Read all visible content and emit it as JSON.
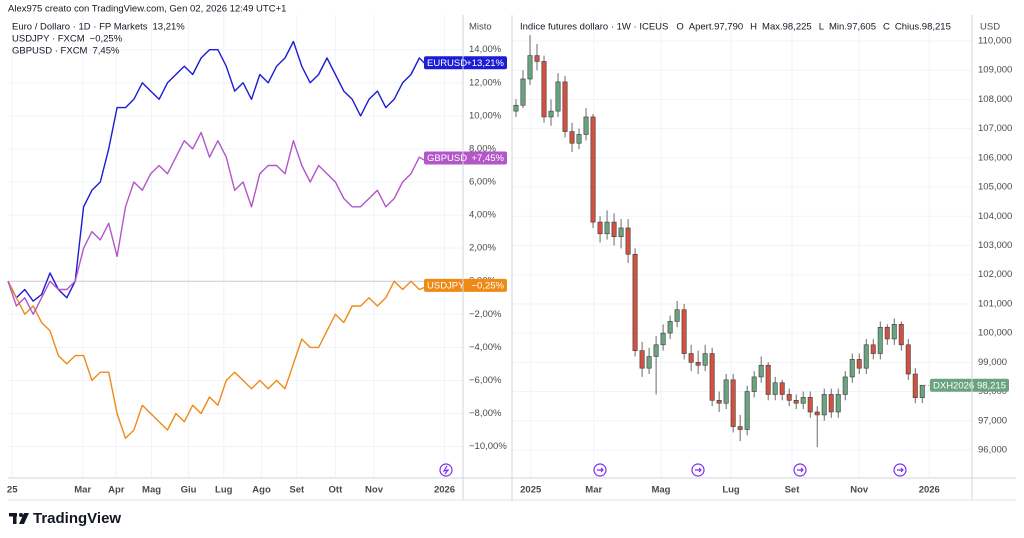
{
  "header": "Alex975 creato con TradingView.com, Gen 02, 2026 12:49 UTC+1",
  "footer": "TradingView",
  "chart_data": [
    {
      "type": "line",
      "axis_label": "Misto",
      "grid": true,
      "xlim": [
        0,
        54.2
      ],
      "ylim": [
        -11.9,
        16.1
      ],
      "xticks": [
        {
          "value": 0.5,
          "label": "25"
        },
        {
          "value": 8.9,
          "label": "Mar"
        },
        {
          "value": 12.9,
          "label": "Apr"
        },
        {
          "value": 17.1,
          "label": "Mag"
        },
        {
          "value": 21.5,
          "label": "Giu"
        },
        {
          "value": 25.7,
          "label": "Lug"
        },
        {
          "value": 30.2,
          "label": "Ago"
        },
        {
          "value": 34.4,
          "label": "Set"
        },
        {
          "value": 39,
          "label": "Ott"
        },
        {
          "value": 43.6,
          "label": "Nov"
        },
        {
          "value": 52,
          "label": "2026"
        }
      ],
      "yticks": [
        {
          "value": 14,
          "label": "14,00%"
        },
        {
          "value": 12,
          "label": "12,00%"
        },
        {
          "value": 10,
          "label": "10,00%"
        },
        {
          "value": 8,
          "label": "8,00%"
        },
        {
          "value": 6,
          "label": "6,00%"
        },
        {
          "value": 4,
          "label": "4,00%"
        },
        {
          "value": 2,
          "label": "2,00%"
        },
        {
          "value": 0,
          "label": "0,00%"
        },
        {
          "value": -2,
          "label": "−2,00%"
        },
        {
          "value": -4,
          "label": "−4,00%"
        },
        {
          "value": -6,
          "label": "−6,00%"
        },
        {
          "value": -8,
          "label": "−8,00%"
        },
        {
          "value": -10,
          "label": "−10,00%"
        }
      ],
      "series": [
        {
          "name": "Euro / Dollaro · 1D · FP Markets",
          "legend_label": "13,21%",
          "tag": "EURUSD",
          "tag_label": "+13,21%",
          "color": "#1c1cd4",
          "values": [
            0,
            -1,
            -0.5,
            -1.2,
            -0.8,
            0.5,
            -0.5,
            -1,
            0,
            4.5,
            5.5,
            6,
            8,
            10.5,
            10.5,
            11,
            12,
            11.5,
            11,
            12,
            12.5,
            13,
            12.5,
            13.5,
            14,
            14,
            13,
            11.5,
            12,
            11,
            12.5,
            12,
            13,
            13.5,
            14.5,
            13,
            12,
            12.5,
            13.5,
            12.5,
            11.5,
            11,
            10,
            11,
            11.5,
            10.5,
            11,
            12,
            12.5,
            13.5,
            13,
            13.21
          ]
        },
        {
          "name": "USDJPY · FXCM",
          "legend_label": "−0,25%",
          "tag": "USDJPY",
          "tag_label": "−0,25%",
          "color": "#ef8a17",
          "values": [
            0,
            -1,
            -2,
            -1.5,
            -2.5,
            -3,
            -4.5,
            -5,
            -4.5,
            -4.5,
            -6,
            -5.5,
            -5.5,
            -8,
            -9.5,
            -9,
            -7.5,
            -8,
            -8.5,
            -9,
            -8,
            -8.5,
            -7.5,
            -8,
            -7,
            -7.5,
            -6,
            -5.5,
            -6,
            -6.5,
            -6,
            -6.5,
            -6,
            -6.5,
            -5,
            -3.5,
            -4,
            -4,
            -3,
            -2,
            -2.5,
            -1.5,
            -1.5,
            -1,
            -1.5,
            -1,
            0,
            -0.5,
            0,
            -0.5,
            -0.3,
            -0.25
          ]
        },
        {
          "name": "GBPUSD · FXCM",
          "legend_label": "7,45%",
          "tag": "GBPUSD",
          "tag_label": "+7,45%",
          "color": "#b256c8",
          "values": [
            0,
            -1.5,
            -1,
            -2,
            -1,
            0,
            -0.5,
            -0.5,
            0,
            2,
            3,
            2.5,
            3.5,
            1.5,
            4.5,
            6,
            5.5,
            6.5,
            7,
            6.5,
            7.5,
            8.5,
            8,
            9,
            7.5,
            8.5,
            7.5,
            5.5,
            6,
            4.5,
            6.5,
            7,
            7,
            6.5,
            8.5,
            7,
            6,
            7,
            6.5,
            6,
            5,
            4.5,
            4.5,
            5,
            5.5,
            4.5,
            5,
            6,
            6.5,
            7.5,
            7.2,
            7.45
          ]
        }
      ]
    },
    {
      "type": "candlestick",
      "title": "Indice futures dollaro · 1W · ICEUS",
      "ohlc_legend": [
        {
          "key": "O",
          "label": "Apert.97,790"
        },
        {
          "key": "H",
          "label": "Max.98,225"
        },
        {
          "key": "L",
          "label": "Min.97,605"
        },
        {
          "key": "C",
          "label": "Chius.98,215"
        }
      ],
      "axis_label": "USD",
      "grid": true,
      "up_color": "#6aa37f",
      "down_color": "#d2513f",
      "tag": "DXH2026",
      "tag_label": "98,215",
      "xlim": [
        -0.57,
        65.1
      ],
      "ylim": [
        95.04,
        110.89
      ],
      "xticks": [
        {
          "value": 2.1,
          "label": "2025"
        },
        {
          "value": 11.1,
          "label": "Mar"
        },
        {
          "value": 20.7,
          "label": "Mag"
        },
        {
          "value": 30.7,
          "label": "Lug"
        },
        {
          "value": 39.4,
          "label": "Set"
        },
        {
          "value": 49,
          "label": "Nov"
        },
        {
          "value": 59,
          "label": "2026"
        }
      ],
      "yticks": [
        {
          "value": 110,
          "label": "110,000"
        },
        {
          "value": 109,
          "label": "109,000"
        },
        {
          "value": 108,
          "label": "108,000"
        },
        {
          "value": 107,
          "label": "107,000"
        },
        {
          "value": 106,
          "label": "106,000"
        },
        {
          "value": 105,
          "label": "105,000"
        },
        {
          "value": 104,
          "label": "104,000"
        },
        {
          "value": 103,
          "label": "103,000"
        },
        {
          "value": 102,
          "label": "102,000"
        },
        {
          "value": 101,
          "label": "101,000"
        },
        {
          "value": 100,
          "label": "100,000"
        },
        {
          "value": 99,
          "label": "99,000"
        },
        {
          "value": 98,
          "label": "98,000"
        },
        {
          "value": 97,
          "label": "97,000"
        },
        {
          "value": 96,
          "label": "96,000"
        }
      ],
      "ohlc": [
        [
          107.6,
          108.0,
          107.4,
          107.8
        ],
        [
          107.8,
          109.0,
          107.7,
          108.7
        ],
        [
          108.7,
          110.2,
          108.5,
          109.5
        ],
        [
          109.5,
          109.9,
          109.0,
          109.3
        ],
        [
          109.3,
          109.5,
          107.2,
          107.4
        ],
        [
          107.4,
          108.0,
          107.1,
          107.6
        ],
        [
          107.6,
          108.9,
          107.4,
          108.6
        ],
        [
          108.6,
          108.8,
          106.7,
          106.9
        ],
        [
          106.9,
          107.2,
          106.2,
          106.5
        ],
        [
          106.5,
          107.0,
          106.3,
          106.8
        ],
        [
          106.8,
          107.7,
          106.6,
          107.4
        ],
        [
          107.4,
          107.5,
          103.6,
          103.8
        ],
        [
          103.8,
          104.0,
          103.1,
          103.4
        ],
        [
          103.4,
          104.2,
          103.2,
          103.8
        ],
        [
          103.8,
          104.1,
          103.0,
          103.3
        ],
        [
          103.3,
          103.9,
          102.9,
          103.6
        ],
        [
          103.6,
          103.9,
          102.4,
          102.7
        ],
        [
          102.7,
          102.9,
          99.2,
          99.4
        ],
        [
          99.4,
          99.7,
          98.5,
          98.8
        ],
        [
          98.8,
          99.5,
          98.6,
          99.2
        ],
        [
          99.2,
          99.9,
          97.9,
          99.6
        ],
        [
          99.6,
          100.3,
          99.4,
          100.0
        ],
        [
          100.0,
          100.6,
          99.8,
          100.4
        ],
        [
          100.4,
          101.1,
          100.2,
          100.8
        ],
        [
          100.8,
          101.0,
          99.1,
          99.3
        ],
        [
          99.3,
          99.6,
          98.7,
          99.0
        ],
        [
          99.0,
          99.4,
          98.6,
          98.9
        ],
        [
          98.9,
          99.6,
          98.7,
          99.3
        ],
        [
          99.3,
          99.5,
          97.5,
          97.7
        ],
        [
          97.7,
          98.0,
          97.3,
          97.6
        ],
        [
          97.6,
          98.6,
          97.4,
          98.4
        ],
        [
          98.4,
          98.6,
          96.6,
          96.8
        ],
        [
          96.8,
          97.2,
          96.3,
          96.7
        ],
        [
          96.7,
          98.2,
          96.5,
          98.0
        ],
        [
          98.0,
          98.7,
          97.8,
          98.5
        ],
        [
          98.5,
          99.2,
          98.3,
          98.9
        ],
        [
          98.9,
          99.0,
          97.7,
          97.9
        ],
        [
          97.9,
          98.5,
          97.7,
          98.3
        ],
        [
          98.3,
          98.4,
          97.7,
          97.9
        ],
        [
          97.9,
          98.1,
          97.5,
          97.7
        ],
        [
          97.7,
          97.9,
          97.4,
          97.6
        ],
        [
          97.6,
          98.0,
          97.4,
          97.8
        ],
        [
          97.8,
          98.0,
          97.1,
          97.3
        ],
        [
          97.3,
          97.5,
          96.1,
          97.2
        ],
        [
          97.2,
          98.1,
          97.0,
          97.9
        ],
        [
          97.9,
          98.1,
          97.1,
          97.3
        ],
        [
          97.3,
          98.1,
          97.1,
          97.9
        ],
        [
          97.9,
          98.7,
          97.7,
          98.5
        ],
        [
          98.5,
          99.3,
          98.3,
          99.1
        ],
        [
          99.1,
          99.3,
          98.6,
          98.8
        ],
        [
          98.8,
          99.8,
          98.6,
          99.6
        ],
        [
          99.6,
          99.8,
          99.1,
          99.3
        ],
        [
          99.3,
          100.4,
          99.1,
          100.2
        ],
        [
          100.2,
          100.3,
          99.6,
          99.8
        ],
        [
          99.8,
          100.5,
          99.6,
          100.3
        ],
        [
          100.3,
          100.4,
          99.4,
          99.6
        ],
        [
          99.6,
          99.8,
          98.4,
          98.6
        ],
        [
          98.6,
          98.8,
          97.6,
          97.79
        ],
        [
          97.79,
          98.225,
          97.605,
          98.215
        ]
      ]
    }
  ]
}
